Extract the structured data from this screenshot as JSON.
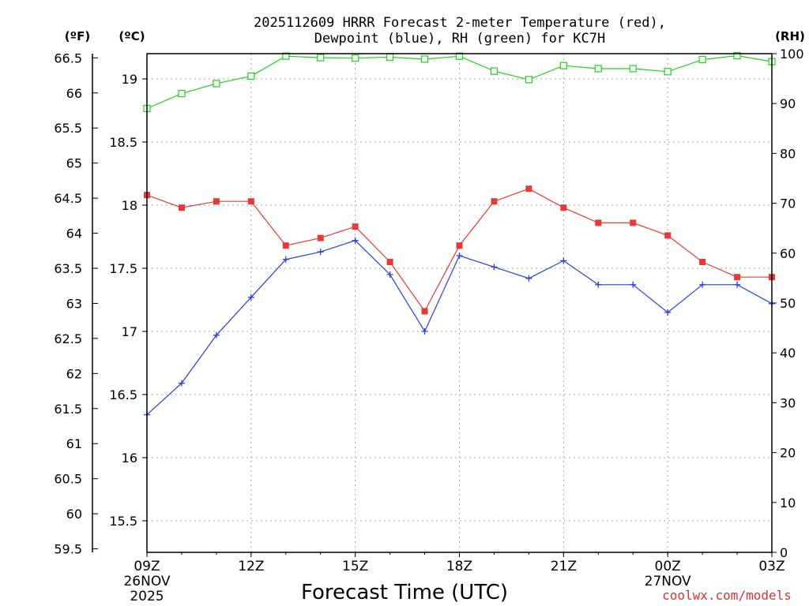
{
  "chart_data": {
    "type": "line",
    "title_line1": "2025112609 HRRR Forecast 2-meter Temperature (red),",
    "title_line2": "Dewpoint (blue), RH (green) for KC7H",
    "unit_f": "(ºF)",
    "unit_c": "(ºC)",
    "unit_rh": "(RH)",
    "xlabel": "Forecast Time (UTC)",
    "credit": "coolwx.com/models",
    "x_hours": [
      0,
      1,
      2,
      3,
      4,
      5,
      6,
      7,
      8,
      9,
      10,
      11,
      12,
      13,
      14,
      15,
      16,
      17,
      18
    ],
    "x_ticks": [
      {
        "hour": 0,
        "label": "09Z",
        "line2": "26NOV",
        "line3": "2025"
      },
      {
        "hour": 3,
        "label": "12Z",
        "line2": "",
        "line3": ""
      },
      {
        "hour": 6,
        "label": "15Z",
        "line2": "",
        "line3": ""
      },
      {
        "hour": 9,
        "label": "18Z",
        "line2": "",
        "line3": ""
      },
      {
        "hour": 12,
        "label": "21Z",
        "line2": "",
        "line3": ""
      },
      {
        "hour": 15,
        "label": "00Z",
        "line2": "27NOV",
        "line3": ""
      },
      {
        "hour": 18,
        "label": "03Z",
        "line2": "",
        "line3": ""
      }
    ],
    "celsius_range": [
      15.25,
      19.2
    ],
    "rh_range": [
      0,
      100
    ],
    "fahrenheit_ticks": [
      "59.5",
      "60",
      "60.5",
      "61",
      "61.5",
      "62",
      "62.5",
      "63",
      "63.5",
      "64",
      "64.5",
      "65",
      "65.5",
      "66",
      "66.5"
    ],
    "celsius_ticks": [
      "15.5",
      "16",
      "16.5",
      "17",
      "17.5",
      "18",
      "18.5",
      "19"
    ],
    "rh_ticks": [
      "0",
      "10",
      "20",
      "30",
      "40",
      "50",
      "60",
      "70",
      "80",
      "90",
      "100"
    ],
    "series": [
      {
        "name": "Temperature",
        "unit": "C",
        "color": "#e83838",
        "marker": "square-filled",
        "values": [
          18.08,
          17.98,
          18.03,
          18.03,
          17.68,
          17.74,
          17.83,
          17.55,
          17.16,
          17.68,
          18.03,
          18.13,
          17.98,
          17.86,
          17.86,
          17.76,
          17.55,
          17.43,
          17.43
        ]
      },
      {
        "name": "Dewpoint",
        "unit": "C",
        "color": "#2a3ee0",
        "marker": "plus",
        "values": [
          16.34,
          16.59,
          16.97,
          17.27,
          17.57,
          17.63,
          17.72,
          17.45,
          17.0,
          17.6,
          17.51,
          17.42,
          17.56,
          17.37,
          17.37,
          17.15,
          17.37,
          17.37,
          17.22
        ]
      },
      {
        "name": "RH",
        "unit": "%",
        "color": "#20d020",
        "marker": "square-open",
        "values": [
          89,
          92,
          94,
          95.5,
          99.5,
          99.2,
          99.1,
          99.3,
          98.9,
          99.5,
          96.5,
          94.8,
          97.6,
          97,
          97,
          96.4,
          98.8,
          99.6,
          98.4
        ]
      }
    ]
  }
}
